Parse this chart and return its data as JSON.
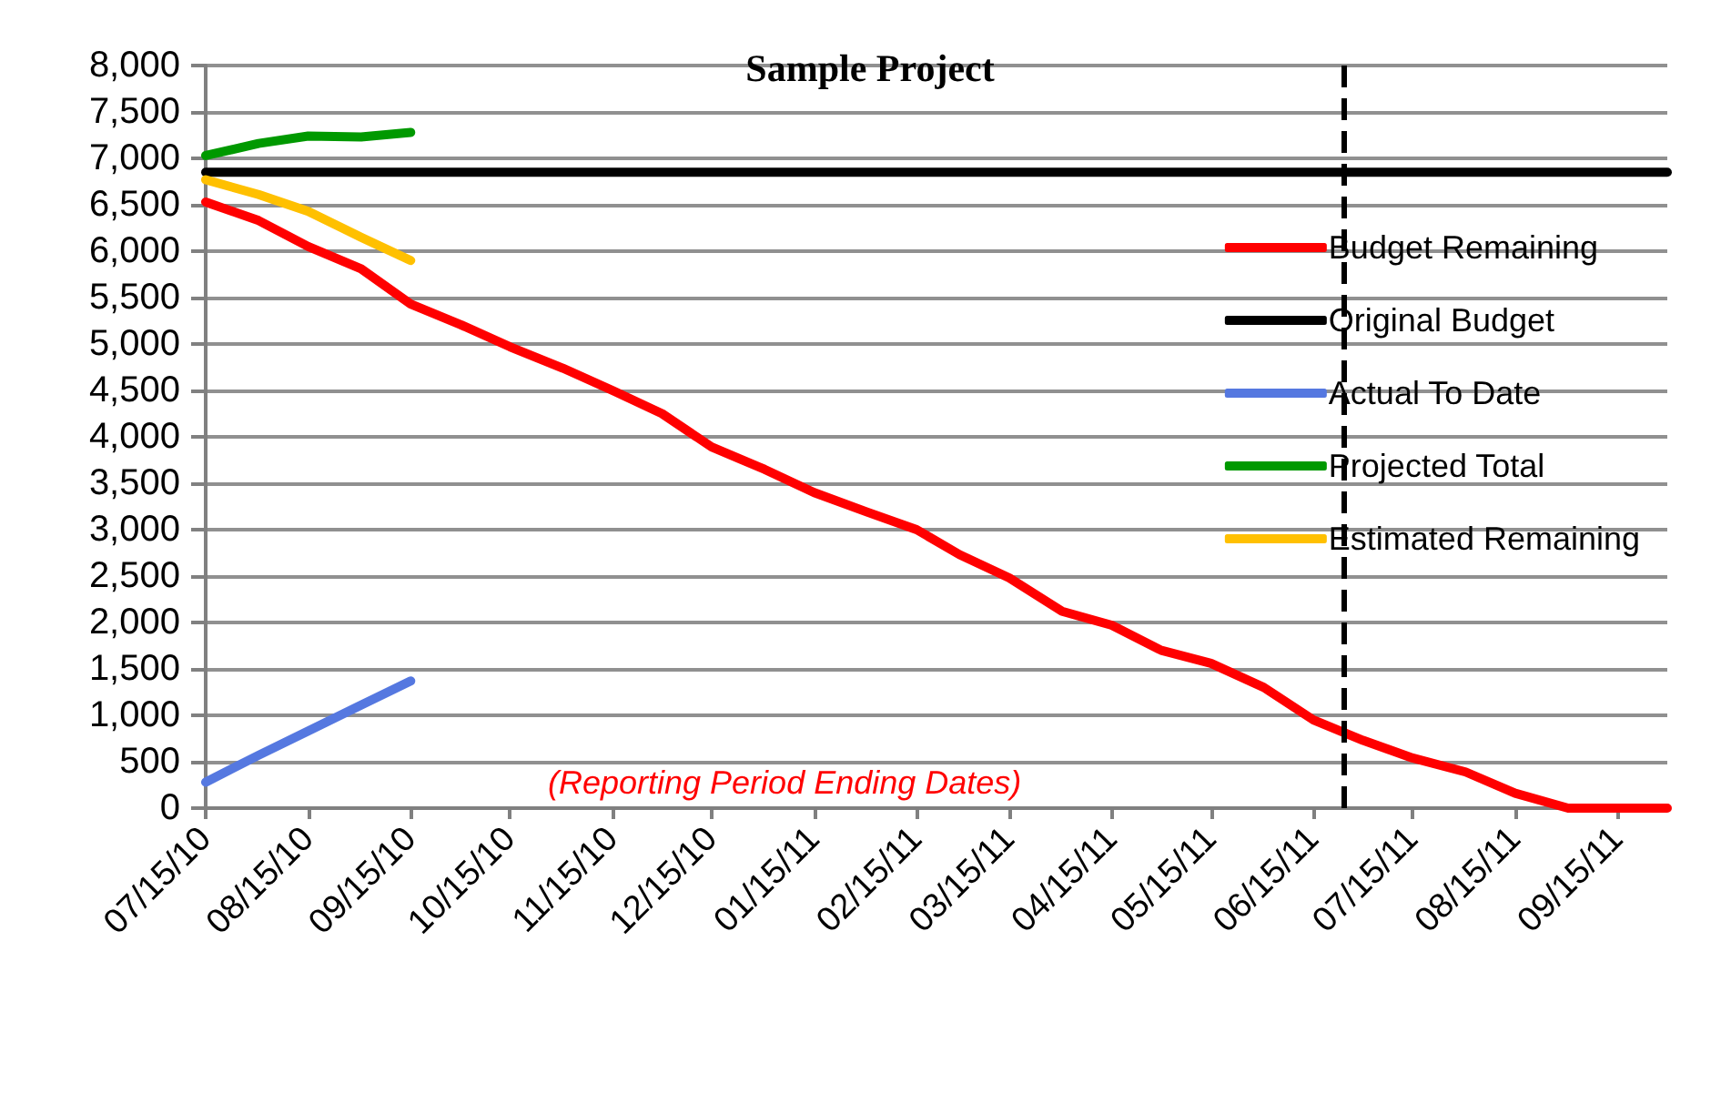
{
  "chart_data": {
    "type": "line",
    "title": "Sample Project",
    "x": [
      "2010-07-15",
      "2010-07-31",
      "2010-08-15",
      "2010-08-31",
      "2010-09-15",
      "2010-09-30",
      "2010-10-15",
      "2010-10-31",
      "2010-11-15",
      "2010-11-30",
      "2010-12-15",
      "2010-12-31",
      "2011-01-15",
      "2011-01-31",
      "2011-02-15",
      "2011-02-28",
      "2011-03-15",
      "2011-03-31",
      "2011-04-15",
      "2011-04-30",
      "2011-05-15",
      "2011-05-31",
      "2011-06-15",
      "2011-06-30",
      "2011-07-15",
      "2011-07-31",
      "2011-08-15",
      "2011-08-31",
      "2011-09-15",
      "2011-09-30"
    ],
    "series": [
      {
        "name": "Budget Remaining",
        "color": "#ff0000",
        "values": [
          6530,
          6330,
          6050,
          5810,
          5430,
          5210,
          4970,
          4740,
          4500,
          4250,
          3890,
          3650,
          3400,
          3190,
          3000,
          2730,
          2480,
          2120,
          1970,
          1700,
          1560,
          1300,
          950,
          730,
          540,
          390,
          160,
          0,
          0,
          0
        ]
      },
      {
        "name": "Original Budget",
        "color": "#000000",
        "values": [
          6850,
          6850,
          6850,
          6850,
          6850,
          6850,
          6850,
          6850,
          6850,
          6850,
          6850,
          6850,
          6850,
          6850,
          6850,
          6850,
          6850,
          6850,
          6850,
          6850,
          6850,
          6850,
          6850,
          6850,
          6850,
          6850,
          6850,
          6850,
          6850,
          6850
        ]
      },
      {
        "name": "Actual To Date",
        "color": "#5578e0",
        "x": [
          "2010-07-15",
          "2010-07-31",
          "2010-08-15",
          "2010-08-31",
          "2010-09-15"
        ],
        "values": [
          280,
          570,
          830,
          1110,
          1370
        ]
      },
      {
        "name": "Projected Total",
        "color": "#009900",
        "x": [
          "2010-07-15",
          "2010-07-31",
          "2010-08-15",
          "2010-08-31",
          "2010-09-15"
        ],
        "values": [
          7030,
          7160,
          7240,
          7230,
          7280
        ]
      },
      {
        "name": "Estimated Remaining",
        "color": "#ffc000",
        "x": [
          "2010-07-15",
          "2010-07-31",
          "2010-08-15",
          "2010-08-31",
          "2010-09-15"
        ],
        "values": [
          6770,
          6610,
          6430,
          6150,
          5900
        ]
      }
    ],
    "xlim": [
      "2010-07-15",
      "2011-09-30"
    ],
    "xticks": [
      {
        "value": "2010-07-15",
        "label": "07/15/10"
      },
      {
        "value": "2010-08-15",
        "label": "08/15/10"
      },
      {
        "value": "2010-09-15",
        "label": "09/15/10"
      },
      {
        "value": "2010-10-15",
        "label": "10/15/10"
      },
      {
        "value": "2010-11-15",
        "label": "11/15/10"
      },
      {
        "value": "2010-12-15",
        "label": "12/15/10"
      },
      {
        "value": "2011-01-15",
        "label": "01/15/11"
      },
      {
        "value": "2011-02-15",
        "label": "02/15/11"
      },
      {
        "value": "2011-03-15",
        "label": "03/15/11"
      },
      {
        "value": "2011-04-15",
        "label": "04/15/11"
      },
      {
        "value": "2011-05-15",
        "label": "05/15/11"
      },
      {
        "value": "2011-06-15",
        "label": "06/15/11"
      },
      {
        "value": "2011-07-15",
        "label": "07/15/11"
      },
      {
        "value": "2011-08-15",
        "label": "08/15/11"
      },
      {
        "value": "2011-09-15",
        "label": "09/15/11"
      }
    ],
    "ylim": [
      0,
      8000
    ],
    "yticks": [
      {
        "value": 0,
        "label": "0"
      },
      {
        "value": 500,
        "label": "500"
      },
      {
        "value": 1000,
        "label": "1,000"
      },
      {
        "value": 1500,
        "label": "1,500"
      },
      {
        "value": 2000,
        "label": "2,000"
      },
      {
        "value": 2500,
        "label": "2,500"
      },
      {
        "value": 3000,
        "label": "3,000"
      },
      {
        "value": 3500,
        "label": "3,500"
      },
      {
        "value": 4000,
        "label": "4,000"
      },
      {
        "value": 4500,
        "label": "4,500"
      },
      {
        "value": 5000,
        "label": "5,000"
      },
      {
        "value": 5500,
        "label": "5,500"
      },
      {
        "value": 6000,
        "label": "6,000"
      },
      {
        "value": 6500,
        "label": "6,500"
      },
      {
        "value": 7000,
        "label": "7,000"
      },
      {
        "value": 7500,
        "label": "7,500"
      },
      {
        "value": 8000,
        "label": "8,000"
      }
    ],
    "ref_lines": [
      {
        "axis": "x",
        "value": "2011-06-24",
        "color": "#000000",
        "line_style": "dashed"
      }
    ],
    "annotations": [
      "(Reporting Period Ending Dates)"
    ],
    "grid": "y",
    "legend": "right",
    "marker": "none",
    "line_style": "solid"
  }
}
